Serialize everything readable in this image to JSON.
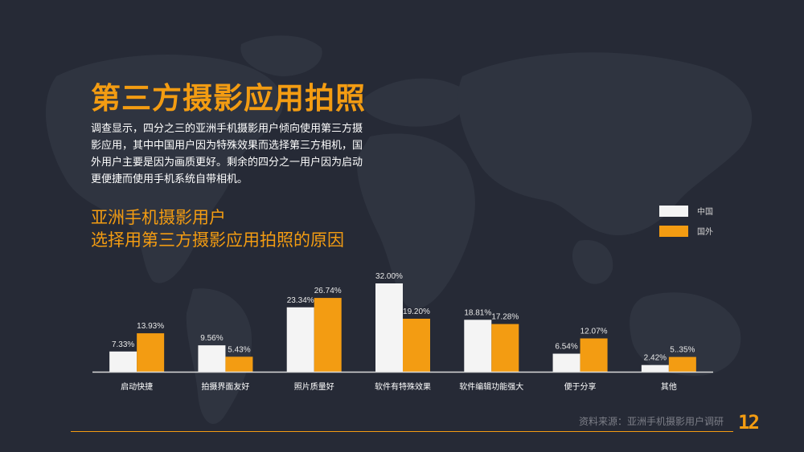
{
  "title": "第三方摄影应用拍照",
  "description": "调查显示，四分之三的亚洲手机摄影用户倾向使用第三方摄影应用，其中中国用户因为特殊效果而选择第三方相机，国外用户主要是因为画质更好。剩余的四分之一用户因为启动更便捷而使用手机系统自带相机。",
  "subtitle_line1": "亚洲手机摄影用户",
  "subtitle_line2": "选择用第三方摄影应用拍照的原因",
  "source": "资料来源：亚洲手机摄影用户调研",
  "page_number": "12",
  "colors": {
    "background": "#262a36",
    "accent": "#f39c12",
    "series_china": "#f4f4f4",
    "series_foreign": "#f39c12"
  },
  "chart_data": {
    "type": "bar",
    "categories": [
      "启动快捷",
      "拍摄界面友好",
      "照片质量好",
      "软件有特殊效果",
      "软件编辑功能强大",
      "便于分享",
      "其他"
    ],
    "series": [
      {
        "name": "中国",
        "values": [
          7.33,
          9.56,
          23.34,
          32.0,
          18.81,
          6.54,
          2.42
        ],
        "labels": [
          "7.33%",
          "9.56%",
          "23.34%",
          "32.00%",
          "18.81%",
          "6.54%",
          "2.42%"
        ]
      },
      {
        "name": "国外",
        "values": [
          13.93,
          5.43,
          26.74,
          19.2,
          17.28,
          12.07,
          5.35
        ],
        "labels": [
          "13.93%",
          "5.43%",
          "26.74%",
          "19.20%",
          "17.28%",
          "12.07%",
          "5..35%"
        ]
      }
    ],
    "ylim": [
      0,
      32
    ],
    "legend_position": "top-right",
    "grid": false
  }
}
